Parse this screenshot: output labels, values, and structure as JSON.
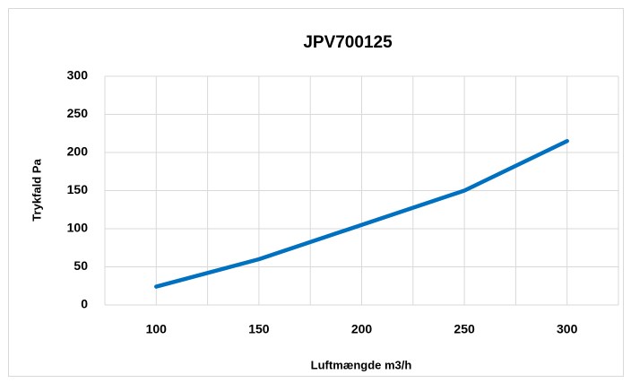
{
  "chart_data": {
    "type": "line",
    "title": "JPV700125",
    "xlabel": "Luftmængde m3/h",
    "ylabel": "Trykfald Pa",
    "x": [
      100,
      150,
      200,
      250,
      300
    ],
    "series": [
      {
        "name": "JPV700125",
        "color": "#0070c0",
        "values": [
          24,
          60,
          105,
          150,
          215
        ]
      }
    ],
    "xlim": [
      75,
      325
    ],
    "xticks": [
      100,
      150,
      200,
      250,
      300
    ],
    "xminorticks": [
      75,
      125,
      175,
      225,
      275,
      325
    ],
    "ylim": [
      0,
      300
    ],
    "yticks": [
      0,
      50,
      100,
      150,
      200,
      250,
      300
    ],
    "grid": true,
    "legend": false
  }
}
